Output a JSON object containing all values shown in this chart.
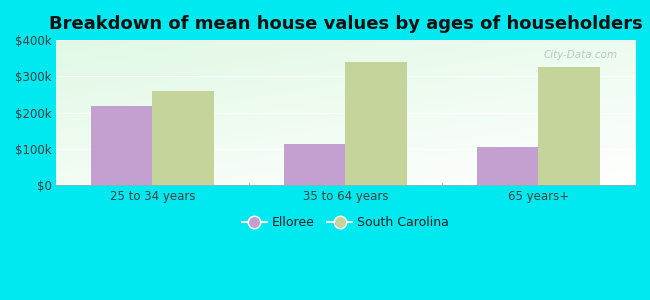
{
  "title": "Breakdown of mean house values by ages of householders",
  "categories": [
    "25 to 34 years",
    "35 to 64 years",
    "65 years+"
  ],
  "elloree_values": [
    220000,
    115000,
    105000
  ],
  "sc_values": [
    260000,
    340000,
    325000
  ],
  "elloree_color": "#c4a0d0",
  "sc_color": "#c5d49a",
  "background_outer": "#00e8f0",
  "background_inner_bottom": "#d4efc4",
  "background_inner_top": "#f5faf5",
  "ylim": [
    0,
    400000
  ],
  "yticks": [
    0,
    100000,
    200000,
    300000,
    400000
  ],
  "ytick_labels": [
    "$0",
    "$100k",
    "$200k",
    "$300k",
    "$400k"
  ],
  "bar_width": 0.32,
  "legend_labels": [
    "Elloree",
    "South Carolina"
  ],
  "title_fontsize": 13,
  "tick_fontsize": 8.5,
  "legend_fontsize": 9
}
